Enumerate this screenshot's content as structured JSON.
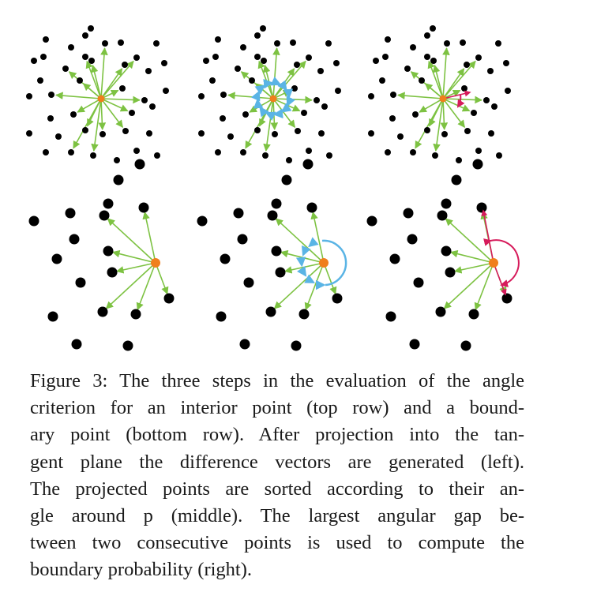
{
  "figure": {
    "colors": {
      "point": "#000000",
      "center": "#f07f1d",
      "vector": "#7dc242",
      "sort_arrow": "#5ab4e5",
      "gap_arrow": "#d61b5b"
    },
    "icons": [
      "point-dot",
      "center-point",
      "difference-vector-arrow",
      "angular-sort-arrow",
      "largest-gap-arc"
    ]
  },
  "caption": {
    "lines": [
      "Figure 3: The three steps in the evaluation of the angle",
      "criterion for an interior point (top row) and a bound-",
      "ary point (bottom row). After projection into the tan-",
      "gent plane the difference vectors are generated (left).",
      "The projected points are sorted according to their an-",
      "gle around p (middle). The largest angular gap be-",
      "tween two consecutive points is used to compute the",
      "boundary probability (right)."
    ]
  }
}
